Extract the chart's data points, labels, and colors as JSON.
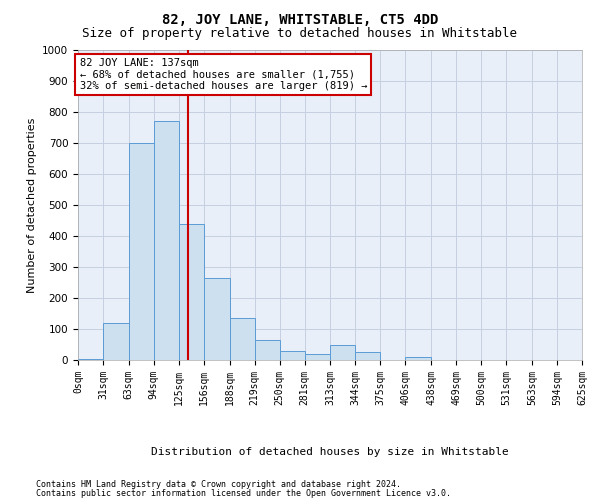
{
  "title": "82, JOY LANE, WHITSTABLE, CT5 4DD",
  "subtitle": "Size of property relative to detached houses in Whitstable",
  "xlabel": "Distribution of detached houses by size in Whitstable",
  "ylabel": "Number of detached properties",
  "footer_line1": "Contains HM Land Registry data © Crown copyright and database right 2024.",
  "footer_line2": "Contains public sector information licensed under the Open Government Licence v3.0.",
  "annotation_title": "82 JOY LANE: 137sqm",
  "annotation_line1": "← 68% of detached houses are smaller (1,755)",
  "annotation_line2": "32% of semi-detached houses are larger (819) →",
  "property_size_sqm": 137,
  "bin_edges": [
    0,
    31,
    63,
    94,
    125,
    156,
    188,
    219,
    250,
    281,
    313,
    344,
    375,
    406,
    438,
    469,
    500,
    531,
    563,
    594,
    625
  ],
  "bar_heights": [
    2,
    120,
    700,
    770,
    440,
    265,
    135,
    65,
    30,
    20,
    50,
    25,
    0,
    10,
    0,
    0,
    0,
    0,
    0,
    0
  ],
  "bar_color": "#cce0f0",
  "bar_edge_color": "#5b9bd5",
  "vline_color": "#cc0000",
  "vline_x": 137,
  "ylim": [
    0,
    1000
  ],
  "yticks": [
    0,
    100,
    200,
    300,
    400,
    500,
    600,
    700,
    800,
    900,
    1000
  ],
  "bg_color": "#ffffff",
  "grid_color": "#d0d8e8",
  "annotation_box_color": "#ffffff",
  "annotation_box_edge": "#cc0000",
  "title_fontsize": 10,
  "subtitle_fontsize": 9,
  "tick_fontsize": 7,
  "ylabel_fontsize": 8,
  "xlabel_fontsize": 8,
  "footer_fontsize": 6,
  "annot_fontsize": 7.5
}
